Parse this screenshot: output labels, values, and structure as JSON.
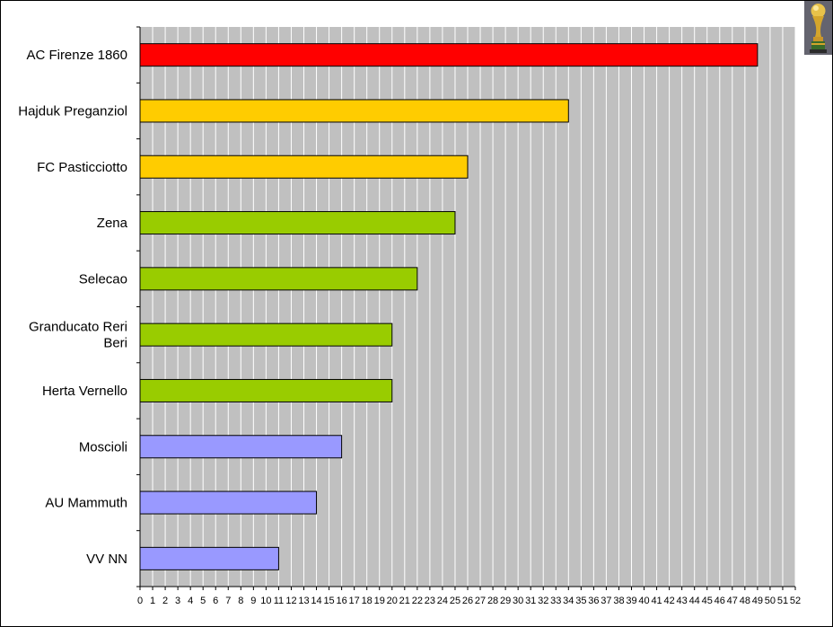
{
  "chart_data": {
    "type": "bar",
    "orientation": "horizontal",
    "categories": [
      "AC Firenze 1860",
      "Hajduk Preganziol",
      "FC Pasticciotto",
      "Zena",
      "Selecao",
      "Granducato Reri Beri",
      "Herta Vernello",
      "Moscioli",
      "AU Mammuth",
      "VV NN"
    ],
    "values": [
      49,
      34,
      26,
      25,
      22,
      20,
      20,
      16,
      14,
      11
    ],
    "bar_colors": [
      "#ff0000",
      "#ffcc00",
      "#ffcc00",
      "#99cc00",
      "#99cc00",
      "#99cc00",
      "#99cc00",
      "#9999ff",
      "#9999ff",
      "#9999ff"
    ],
    "x_ticks": [
      "0",
      "1",
      "2",
      "3",
      "4",
      "5",
      "6",
      "7",
      "8",
      "9",
      "10",
      "11",
      "12",
      "13",
      "14",
      "15",
      "16",
      "17",
      "18",
      "19",
      "20",
      "21",
      "22",
      "23",
      "24",
      "25",
      "26",
      "27",
      "28",
      "29",
      "30",
      "31",
      "32",
      "33",
      "34",
      "35",
      "36",
      "37",
      "38",
      "39",
      "40",
      "41",
      "42",
      "43",
      "44",
      "45",
      "46",
      "47",
      "48",
      "49",
      "50",
      "51",
      "52"
    ],
    "xlim": [
      0,
      52
    ],
    "title": "",
    "xlabel": "",
    "ylabel": "",
    "grid": "vertical",
    "plot_background": "#c0c0c0",
    "legend": "none"
  },
  "decoration": {
    "icon": "trophy-icon"
  }
}
